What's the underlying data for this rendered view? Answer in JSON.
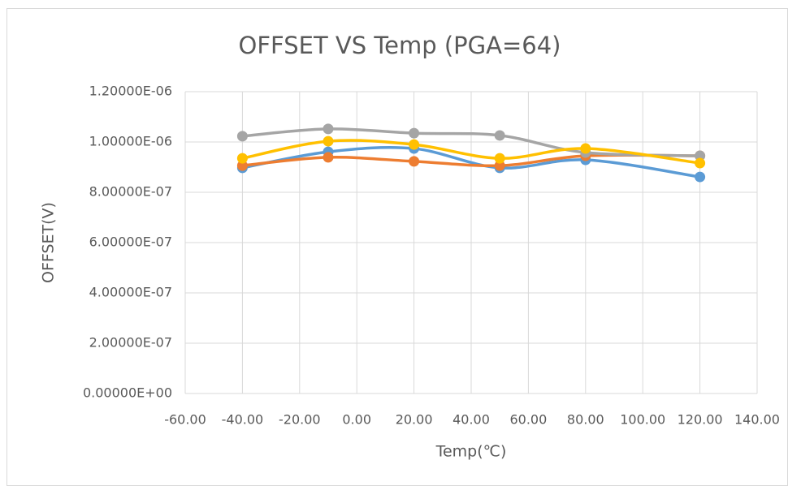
{
  "chart_data": {
    "type": "scatter-smooth",
    "title": "OFFSET VS Temp (PGA=64)",
    "x_label": "Temp(℃)",
    "y_label": "OFFSET(V)",
    "x": [
      -40,
      -10,
      20,
      50,
      80,
      120
    ],
    "series": [
      {
        "color": "#5b9bd5",
        "values": [
          8.97e-07,
          9.61e-07,
          9.74e-07,
          8.97e-07,
          9.29e-07,
          8.61e-07
        ]
      },
      {
        "color": "#ed7d31",
        "values": [
          9.06e-07,
          9.39e-07,
          9.23e-07,
          9.06e-07,
          9.45e-07,
          9.45e-07
        ]
      },
      {
        "color": "#a5a5a5",
        "values": [
          1.023e-06,
          1.052e-06,
          1.035e-06,
          1.026e-06,
          9.58e-07,
          9.45e-07
        ]
      },
      {
        "color": "#ffc000",
        "values": [
          9.35e-07,
          1.003e-06,
          9.9e-07,
          9.35e-07,
          9.74e-07,
          9.16e-07
        ]
      }
    ],
    "xlim": [
      -60,
      140
    ],
    "xticks": [
      {
        "value": -60,
        "label": "-60.00"
      },
      {
        "value": -40,
        "label": "-40.00"
      },
      {
        "value": -20,
        "label": "-20.00"
      },
      {
        "value": 0,
        "label": "0.00"
      },
      {
        "value": 20,
        "label": "20.00"
      },
      {
        "value": 40,
        "label": "40.00"
      },
      {
        "value": 60,
        "label": "60.00"
      },
      {
        "value": 80,
        "label": "80.00"
      },
      {
        "value": 100,
        "label": "100.00"
      },
      {
        "value": 120,
        "label": "120.00"
      },
      {
        "value": 140,
        "label": "140.00"
      }
    ],
    "ylim": [
      0,
      1.2e-06
    ],
    "yticks": [
      {
        "value": 0,
        "label": "0.00000E+00"
      },
      {
        "value": 2e-07,
        "label": "2.00000E-07"
      },
      {
        "value": 4e-07,
        "label": "4.00000E-07"
      },
      {
        "value": 6e-07,
        "label": "6.00000E-07"
      },
      {
        "value": 8e-07,
        "label": "8.00000E-07"
      },
      {
        "value": 1e-06,
        "label": "1.00000E-06"
      },
      {
        "value": 1.2e-06,
        "label": "1.20000E-06"
      }
    ],
    "grid": true
  }
}
